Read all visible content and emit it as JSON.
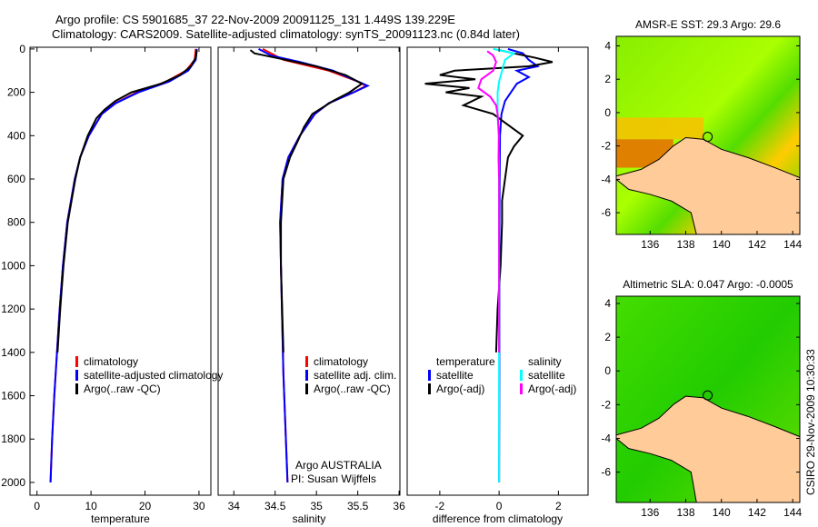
{
  "title_line1": "Argo profile: CS 5901685_37 22-Nov-2009 20091125_131 1.449S 139.229E",
  "title_line2": "Climatology: CARS2009. Satellite-adjusted climatology: synTS_20091123.nc (0.84d later)",
  "side_label": "CSIRO 29-Nov-2009 10:30:33",
  "argo_label": "Argo AUSTRALIA",
  "pi_label": "PI: Susan Wijffels",
  "colors": {
    "clim": "#ff0000",
    "sat": "#0000ff",
    "argo": "#000000",
    "sal_sat": "#00ffff",
    "sal_argo": "#ff00ff",
    "land": "#ffcc99"
  },
  "chart_data": [
    {
      "type": "line",
      "id": "temp",
      "xlabel": "temperature",
      "xlim": [
        -1.3,
        32.2
      ],
      "ylim": [
        2059,
        -8
      ],
      "xticks": [
        0,
        10,
        20,
        30
      ],
      "yticks": [
        0,
        200,
        400,
        600,
        800,
        1000,
        1200,
        1400,
        1600,
        1800,
        2000
      ],
      "legend": [
        "climatology",
        "satellite-adjusted climatology",
        "Argo(..raw -QC)"
      ],
      "series": [
        {
          "name": "climatology",
          "color": "#ff0000",
          "depth": [
            0,
            50,
            100,
            150,
            200,
            250,
            300,
            400,
            500,
            600,
            800,
            1000,
            1200,
            1400,
            1600,
            1800,
            2000
          ],
          "values": [
            29.4,
            29.2,
            27.6,
            24.0,
            18.5,
            14.5,
            12.0,
            9.6,
            8.0,
            7.0,
            5.6,
            4.8,
            4.2,
            3.7,
            3.2,
            2.8,
            2.5
          ]
        },
        {
          "name": "satellite-adjusted climatology",
          "color": "#0000ff",
          "depth": [
            0,
            50,
            100,
            150,
            200,
            250,
            300,
            400,
            500,
            600,
            800,
            1000,
            1200,
            1400,
            1600,
            1800,
            2000
          ],
          "values": [
            29.6,
            29.4,
            28.0,
            24.5,
            18.8,
            14.6,
            12.0,
            9.6,
            8.0,
            7.0,
            5.6,
            4.8,
            4.2,
            3.7,
            3.2,
            2.8,
            2.5
          ]
        },
        {
          "name": "Argo",
          "color": "#000000",
          "depth": [
            5,
            40,
            80,
            120,
            160,
            200,
            240,
            280,
            320,
            400,
            500,
            600,
            800,
            1000,
            1200,
            1400
          ],
          "values": [
            29.6,
            29.4,
            28.5,
            26.5,
            23.0,
            17.5,
            14.5,
            12.5,
            11.0,
            9.4,
            8.0,
            7.1,
            5.7,
            4.9,
            4.3,
            3.8
          ]
        }
      ]
    },
    {
      "type": "line",
      "id": "sal",
      "xlabel": "salinity",
      "xlim": [
        33.81,
        36.01
      ],
      "ylim": [
        2059,
        -8
      ],
      "xticks": [
        34,
        34.5,
        35,
        35.5,
        36
      ],
      "yticks": [],
      "legend": [
        "climatology",
        "satellite adj. clim.",
        "Argo(..raw -QC)"
      ],
      "series": [
        {
          "name": "climatology",
          "color": "#ff0000",
          "depth": [
            0,
            50,
            100,
            150,
            170,
            200,
            250,
            300,
            400,
            500,
            600,
            800,
            1000,
            1500,
            2000
          ],
          "values": [
            34.35,
            34.6,
            35.15,
            35.5,
            35.6,
            35.45,
            35.15,
            34.98,
            34.8,
            34.66,
            34.59,
            34.56,
            34.57,
            34.6,
            34.65
          ]
        },
        {
          "name": "satellite adj. clim.",
          "color": "#0000ff",
          "depth": [
            0,
            30,
            60,
            100,
            150,
            170,
            200,
            250,
            300,
            400,
            500,
            600,
            800,
            1000,
            1500,
            2000
          ],
          "values": [
            34.3,
            34.45,
            34.8,
            35.2,
            35.5,
            35.62,
            35.45,
            35.15,
            34.98,
            34.8,
            34.66,
            34.59,
            34.56,
            34.57,
            34.6,
            34.65
          ]
        },
        {
          "name": "Argo",
          "color": "#000000",
          "depth": [
            5,
            20,
            40,
            80,
            120,
            160,
            200,
            240,
            300,
            360,
            420,
            500,
            600,
            800,
            1000,
            1400
          ],
          "values": [
            34.2,
            34.25,
            34.5,
            35.0,
            35.35,
            35.55,
            35.4,
            35.2,
            34.95,
            34.85,
            34.78,
            34.68,
            34.6,
            34.57,
            34.57,
            34.6
          ]
        }
      ]
    },
    {
      "type": "line",
      "id": "diff",
      "xlabel": "difference from climatology",
      "xlim": [
        -3.1,
        3.0
      ],
      "ylim": [
        2059,
        -8
      ],
      "xticks": [
        -2,
        0,
        2
      ],
      "yticks": [],
      "legend_temp": [
        "temperature",
        "satellite",
        "Argo(-adj)"
      ],
      "legend_sal": [
        "salinity",
        "satellite",
        "Argo(-adj)"
      ],
      "series": [
        {
          "name": "temp satellite",
          "color": "#0000ff",
          "depth": [
            0,
            20,
            50,
            80,
            100,
            130,
            160,
            200,
            240,
            300,
            400,
            600,
            1000,
            1500,
            2000
          ],
          "values": [
            0.3,
            0.8,
            1.0,
            1.3,
            0.6,
            1.0,
            0.6,
            0.4,
            0.2,
            0.08,
            0.03,
            0.02,
            0.01,
            0.01,
            0.0
          ]
        },
        {
          "name": "temp Argo",
          "color": "#000000",
          "depth": [
            5,
            20,
            40,
            60,
            80,
            100,
            120,
            140,
            160,
            180,
            200,
            220,
            260,
            300,
            350,
            400,
            450,
            500,
            600,
            700,
            800,
            1000,
            1200,
            1400
          ],
          "values": [
            0.0,
            0.5,
            1.2,
            1.8,
            1.0,
            -1.5,
            -2.0,
            -0.8,
            -2.5,
            -1.0,
            -1.8,
            -0.6,
            -1.2,
            -0.2,
            0.3,
            0.8,
            0.5,
            0.3,
            0.2,
            0.1,
            0.1,
            0.05,
            -0.05,
            -0.1
          ]
        },
        {
          "name": "sal satellite",
          "color": "#00ffff",
          "depth": [
            0,
            20,
            50,
            100,
            150,
            200,
            300,
            400,
            600,
            1000,
            2000
          ],
          "values": [
            -0.2,
            0.5,
            0.2,
            0.1,
            0.0,
            -0.05,
            -0.05,
            -0.02,
            0.0,
            0.0,
            0.0
          ]
        },
        {
          "name": "sal Argo",
          "color": "#ff00ff",
          "depth": [
            10,
            30,
            60,
            100,
            140,
            180,
            220,
            260,
            300,
            400,
            500,
            600,
            800,
            1000,
            1400
          ],
          "values": [
            -0.4,
            -0.2,
            -0.1,
            -0.2,
            -0.6,
            -0.7,
            -0.3,
            -0.1,
            -0.05,
            0.0,
            -0.02,
            0.0,
            0.0,
            0.0,
            0.0
          ]
        }
      ]
    },
    {
      "type": "heatmap",
      "id": "sst",
      "title": "AMSR-E SST: 29.3 Argo: 29.6",
      "xlim": [
        134.1,
        144.4
      ],
      "ylim": [
        -7.3,
        4.57
      ],
      "xticks": [
        136,
        138,
        140,
        142,
        144
      ],
      "yticks": [
        4,
        2,
        0,
        -2,
        -4,
        -6
      ],
      "float_position": [
        139.229,
        -1.449
      ]
    },
    {
      "type": "heatmap",
      "id": "sla",
      "title": "Altimetric SLA: 0.047 Argo: -0.0005",
      "xlim": [
        134.1,
        144.4
      ],
      "ylim": [
        -7.8,
        4.43
      ],
      "xticks": [
        136,
        138,
        140,
        142,
        144
      ],
      "yticks": [
        4,
        2,
        0,
        -2,
        -4,
        -6
      ],
      "float_position": [
        139.229,
        -1.449
      ]
    }
  ],
  "land_outline": [
    [
      137.3,
      -2.0
    ],
    [
      138,
      -1.5
    ],
    [
      139,
      -1.6
    ],
    [
      140,
      -2.2
    ],
    [
      141.5,
      -2.7
    ],
    [
      143,
      -3.3
    ],
    [
      144.4,
      -3.9
    ],
    [
      144.4,
      -8
    ],
    [
      138.6,
      -8
    ],
    [
      138.3,
      -6
    ],
    [
      137.2,
      -5.3
    ],
    [
      136,
      -4.9
    ],
    [
      134.8,
      -4.6
    ],
    [
      134.1,
      -4.0
    ],
    [
      134.1,
      -3.8
    ],
    [
      135.5,
      -3.4
    ],
    [
      136.5,
      -2.8
    ]
  ]
}
